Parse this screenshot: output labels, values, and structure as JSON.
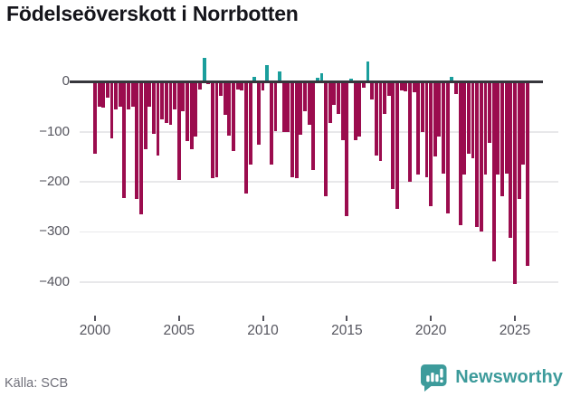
{
  "title": "Födelseöverskott i Norrbotten",
  "source": "Källa: SCB",
  "brand": {
    "name": "Newsworthy"
  },
  "colors": {
    "negative_bar": "#9b0c4e",
    "positive_bar": "#1a9e9c",
    "zero_axis": "#36363c",
    "gridline": "#e8e8ea",
    "tick_text": "#55555e",
    "source_text": "#70707a",
    "brand_teal": "#3d9b9b",
    "title_text": "#15151b"
  },
  "chart_data": {
    "type": "bar",
    "title": "Födelseöverskott i Norrbotten",
    "xlabel": "",
    "ylabel": "",
    "grid": true,
    "legend_position": "none",
    "ylim": [
      -460,
      55
    ],
    "yticks": [
      0,
      -100,
      -200,
      -300,
      -400
    ],
    "ytick_labels": [
      "0",
      "−100",
      "−200",
      "−300",
      "−400"
    ],
    "xticks": [
      "2000",
      "2005",
      "2010",
      "2015",
      "2020",
      "2025"
    ],
    "x": [
      "2000Q1",
      "2000Q2",
      "2000Q3",
      "2000Q4",
      "2001Q1",
      "2001Q2",
      "2001Q3",
      "2001Q4",
      "2002Q1",
      "2002Q2",
      "2002Q3",
      "2002Q4",
      "2003Q1",
      "2003Q2",
      "2003Q3",
      "2003Q4",
      "2004Q1",
      "2004Q2",
      "2004Q3",
      "2004Q4",
      "2005Q1",
      "2005Q2",
      "2005Q3",
      "2005Q4",
      "2006Q1",
      "2006Q2",
      "2006Q3",
      "2006Q4",
      "2007Q1",
      "2007Q2",
      "2007Q3",
      "2007Q4",
      "2008Q1",
      "2008Q2",
      "2008Q3",
      "2008Q4",
      "2009Q1",
      "2009Q2",
      "2009Q3",
      "2009Q4",
      "2010Q1",
      "2010Q2",
      "2010Q3",
      "2010Q4",
      "2011Q1",
      "2011Q2",
      "2011Q3",
      "2011Q4",
      "2012Q1",
      "2012Q2",
      "2012Q3",
      "2012Q4",
      "2013Q1",
      "2013Q2",
      "2013Q3",
      "2013Q4",
      "2014Q1",
      "2014Q2",
      "2014Q3",
      "2014Q4",
      "2015Q1",
      "2015Q2",
      "2015Q3",
      "2015Q4",
      "2016Q1",
      "2016Q2",
      "2016Q3",
      "2016Q4",
      "2017Q1",
      "2017Q2",
      "2017Q3",
      "2017Q4",
      "2018Q1",
      "2018Q2",
      "2018Q3",
      "2018Q4",
      "2019Q1",
      "2019Q2",
      "2019Q3",
      "2019Q4",
      "2020Q1",
      "2020Q2",
      "2020Q3",
      "2020Q4",
      "2021Q1",
      "2021Q2",
      "2021Q3",
      "2021Q4",
      "2022Q1",
      "2022Q2",
      "2022Q3",
      "2022Q4",
      "2023Q1",
      "2023Q2",
      "2023Q3",
      "2023Q4",
      "2024Q1",
      "2024Q2",
      "2024Q3",
      "2024Q4",
      "2025Q1",
      "2025Q2",
      "2025Q3",
      "2025Q4"
    ],
    "values": [
      -144,
      -49,
      -52,
      -31,
      -113,
      -55,
      -49,
      -232,
      -55,
      -49,
      -235,
      -265,
      -135,
      -49,
      -104,
      -147,
      -76,
      -83,
      -86,
      -55,
      -196,
      -58,
      -119,
      -135,
      -110,
      -15,
      48,
      -5,
      -193,
      -190,
      -28,
      -67,
      -107,
      -138,
      -15,
      -18,
      -223,
      -165,
      9,
      -125,
      -18,
      34,
      -165,
      -98,
      20,
      -101,
      -101,
      -190,
      -193,
      -105,
      -58,
      -86,
      -177,
      8,
      17,
      -229,
      -83,
      -46,
      -64,
      -116,
      -269,
      7,
      -116,
      -110,
      -12,
      40,
      -35,
      -147,
      -159,
      -64,
      -28,
      -214,
      -254,
      -18,
      -20,
      -200,
      -21,
      -186,
      -100,
      -191,
      -248,
      -150,
      -110,
      -183,
      -263,
      9,
      -24,
      -287,
      -186,
      -144,
      -153,
      -290,
      -299,
      -186,
      -123,
      -359,
      -186,
      -228,
      -183,
      -311,
      -404,
      -234,
      -165,
      -368
    ],
    "source": "Källa: SCB"
  }
}
